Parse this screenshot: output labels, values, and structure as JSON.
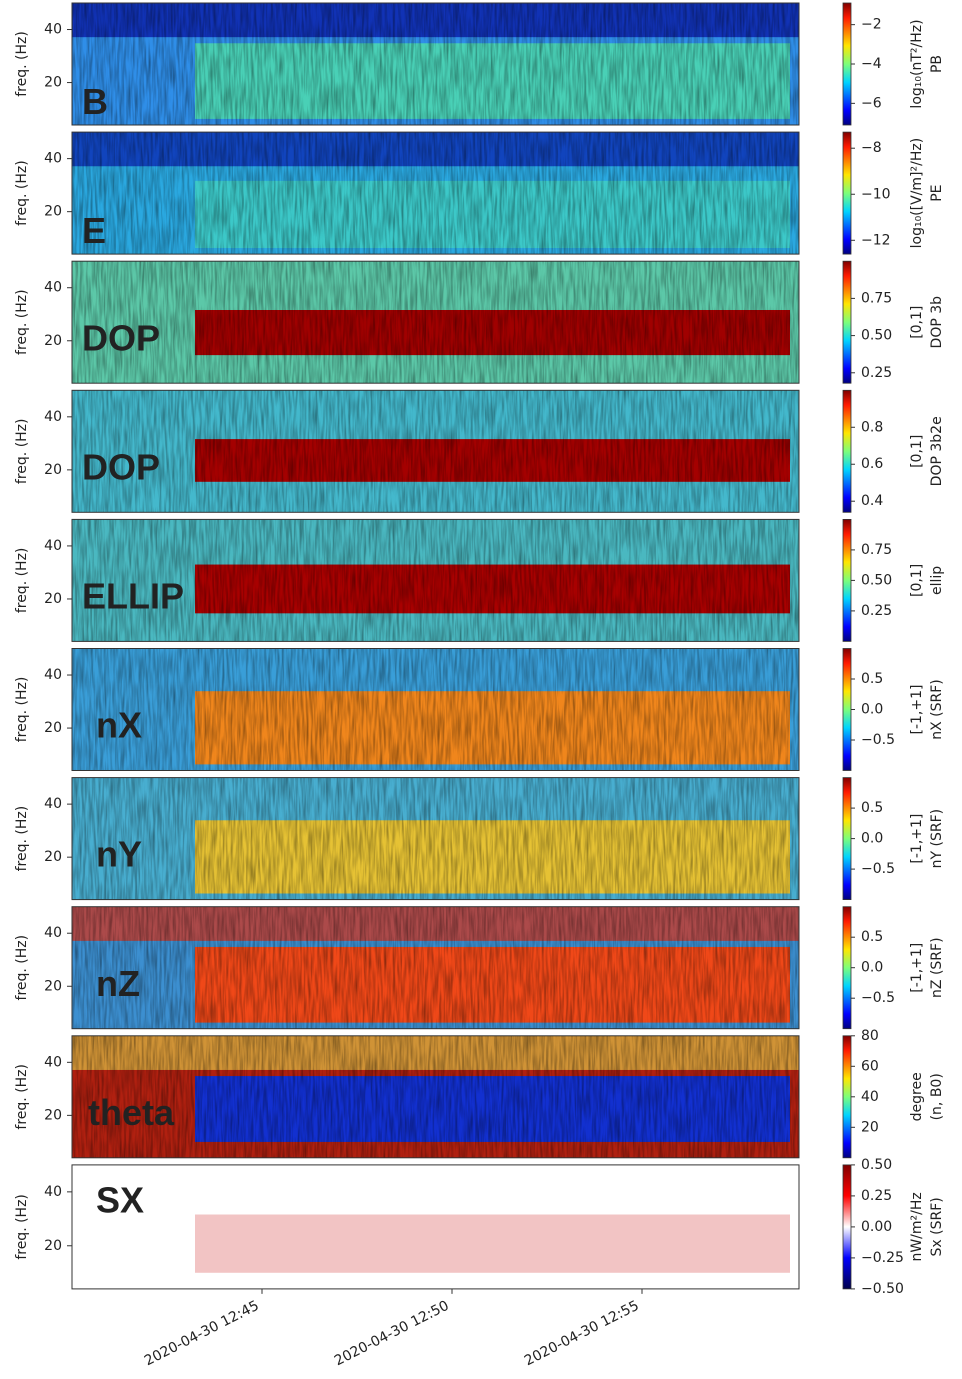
{
  "chart_data": [
    {
      "type": "spectrogram",
      "label": "B",
      "label_color": "#000000",
      "ylabel": "freq. (Hz)",
      "ylim": [
        4,
        50
      ],
      "yticks": [
        20,
        40
      ],
      "colorbar": {
        "cmap": "jet",
        "lim": [
          -7.1,
          -0.9
        ],
        "ticks": [
          {
            "value": -2,
            "label": "−2"
          },
          {
            "value": -4,
            "label": "−4"
          },
          {
            "value": -6,
            "label": "−6"
          }
        ],
        "label": [
          "log₁₀(nT²/Hz)",
          "PB"
        ]
      }
    },
    {
      "type": "spectrogram",
      "label": "E",
      "label_color": "#000000",
      "ylabel": "freq. (Hz)",
      "ylim": [
        4,
        50
      ],
      "yticks": [
        20,
        40
      ],
      "colorbar": {
        "cmap": "jet",
        "lim": [
          -12.6,
          -7.3
        ],
        "ticks": [
          {
            "value": -8,
            "label": "−8"
          },
          {
            "value": -10,
            "label": "−10"
          },
          {
            "value": -12,
            "label": "−12"
          }
        ],
        "label": [
          "log₁₀([V/m]²/Hz)",
          "PE"
        ]
      }
    },
    {
      "type": "spectrogram",
      "label": "DOP",
      "label_color": "#000000",
      "ylabel": "freq. (Hz)",
      "ylim": [
        4,
        50
      ],
      "yticks": [
        20,
        40
      ],
      "colorbar": {
        "cmap": "jet",
        "lim": [
          0.18,
          1.0
        ],
        "ticks": [
          0.75,
          {
            "value": 0.5,
            "label": "0.50"
          },
          0.25
        ],
        "label": [
          "[0,1]",
          "DOP 3b"
        ]
      }
    },
    {
      "type": "spectrogram",
      "label": "DOP",
      "label_color": "#000000",
      "ylabel": "freq. (Hz)",
      "ylim": [
        4,
        50
      ],
      "yticks": [
        20,
        40
      ],
      "colorbar": {
        "cmap": "jet",
        "lim": [
          0.34,
          1.0
        ],
        "ticks": [
          0.8,
          0.6,
          0.4
        ],
        "label": [
          "[0,1]",
          "DOP 3b2e"
        ]
      }
    },
    {
      "type": "spectrogram",
      "label": "ELLIP",
      "label_color": "#000000",
      "ylabel": "freq. (Hz)",
      "ylim": [
        4,
        50
      ],
      "yticks": [
        20,
        40
      ],
      "colorbar": {
        "cmap": "jet",
        "lim": [
          0,
          1
        ],
        "ticks": [
          0.75,
          {
            "value": 0.5,
            "label": "0.50"
          },
          0.25
        ],
        "label": [
          "[0,1]",
          "ellip"
        ]
      }
    },
    {
      "type": "spectrogram",
      "label": "nX",
      "label_color": "#ffffff",
      "ylabel": "freq. (Hz)",
      "ylim": [
        4,
        50
      ],
      "yticks": [
        20,
        40
      ],
      "colorbar": {
        "cmap": "jet",
        "lim": [
          -1,
          1
        ],
        "ticks": [
          0.5,
          {
            "value": 0,
            "label": "0.0"
          },
          {
            "value": -0.5,
            "label": "−0.5"
          }
        ],
        "label": [
          "[-1,+1]",
          "nX (SRF)"
        ]
      }
    },
    {
      "type": "spectrogram",
      "label": "nY",
      "label_color": "#ffffff",
      "ylabel": "freq. (Hz)",
      "ylim": [
        4,
        50
      ],
      "yticks": [
        20,
        40
      ],
      "colorbar": {
        "cmap": "jet",
        "lim": [
          -1,
          1
        ],
        "ticks": [
          0.5,
          {
            "value": 0,
            "label": "0.0"
          },
          {
            "value": -0.5,
            "label": "−0.5"
          }
        ],
        "label": [
          "[-1,+1]",
          "nY (SRF)"
        ]
      }
    },
    {
      "type": "spectrogram",
      "label": "nZ",
      "label_color": "#ffffff",
      "ylabel": "freq. (Hz)",
      "ylim": [
        4,
        50
      ],
      "yticks": [
        20,
        40
      ],
      "colorbar": {
        "cmap": "jet",
        "lim": [
          -1,
          1
        ],
        "ticks": [
          0.5,
          {
            "value": 0,
            "label": "0.0"
          },
          {
            "value": -0.5,
            "label": "−0.5"
          }
        ],
        "label": [
          "[-1,+1]",
          "nZ (SRF)"
        ]
      }
    },
    {
      "type": "spectrogram",
      "label": "theta",
      "label_color": "#ffffff",
      "ylabel": "freq. (Hz)",
      "ylim": [
        4,
        50
      ],
      "yticks": [
        20,
        40
      ],
      "colorbar": {
        "cmap": "jet",
        "lim": [
          0,
          80
        ],
        "ticks": [
          80,
          60,
          40,
          20
        ],
        "label": [
          "degree",
          "(n, B0)"
        ]
      }
    },
    {
      "type": "spectrogram",
      "label": "SX",
      "label_color": "#000000",
      "ylabel": "freq. (Hz)",
      "ylim": [
        4,
        50
      ],
      "yticks": [
        20,
        40
      ],
      "colorbar": {
        "cmap": "seismic",
        "lim": [
          -0.5,
          0.5
        ],
        "ticks": [
          {
            "value": 0.5,
            "label": "0.50"
          },
          0.25,
          {
            "value": 0,
            "label": "0.00"
          },
          {
            "value": -0.25,
            "label": "−0.25"
          },
          {
            "value": -0.5,
            "label": "−0.50"
          }
        ],
        "label": [
          "nW/m²/Hz",
          "Sx (SRF)"
        ]
      },
      "xlim": [
        "2020-04-30 12:40",
        "2020-04-30 12:59"
      ],
      "xticks": [
        "2020-04-30 12:45",
        "2020-04-30 12:50",
        "2020-04-30 12:55"
      ]
    }
  ]
}
